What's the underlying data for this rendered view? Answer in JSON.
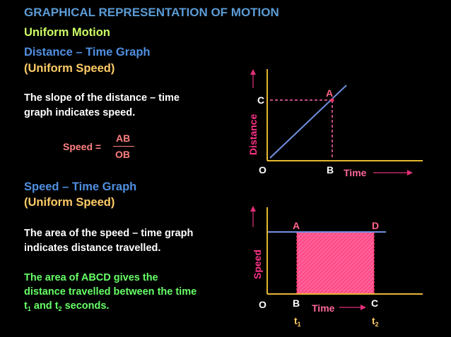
{
  "title": "GRAPHICAL REPRESENTATION OF MOTION",
  "subtitle": "Uniform Motion",
  "distance_section": {
    "heading": "Distance – Time Graph",
    "subheading": "(Uniform Speed)",
    "text_line1": "The slope of the distance – time",
    "text_line2": "graph indicates speed.",
    "formula_label": "Speed =",
    "numerator": "AB",
    "denominator": "OB"
  },
  "speed_section": {
    "heading": "Speed – Time Graph",
    "subheading": "(Uniform Speed)",
    "text_line1": "The area of the speed – time graph",
    "text_line2": "indicates distance travelled.",
    "green_line1": "The area of ABCD gives the",
    "green_line2": "distance travelled between the time",
    "green_t": "t",
    "green_sub1": "1",
    "green_mid": " and t",
    "green_sub2": "2",
    "green_end": " seconds."
  },
  "graph1": {
    "y_axis_label": "Distance",
    "x_axis_label": "Time",
    "origin": "O",
    "point_a": "A",
    "point_b": "B",
    "point_c": "C"
  },
  "graph2": {
    "y_axis_label": "Speed",
    "x_axis_label": "Time",
    "origin": "O",
    "point_a": "A",
    "point_b": "B",
    "point_c": "C",
    "point_d": "D",
    "t1": "t",
    "t1_sub": "1",
    "t2": "t",
    "t2_sub": "2"
  },
  "colors": {
    "axis": "#e6b830",
    "arrow": "#e0307a",
    "line": "#7090e0",
    "fill": "#ff4d8a",
    "dashed": "#ff66aa"
  }
}
